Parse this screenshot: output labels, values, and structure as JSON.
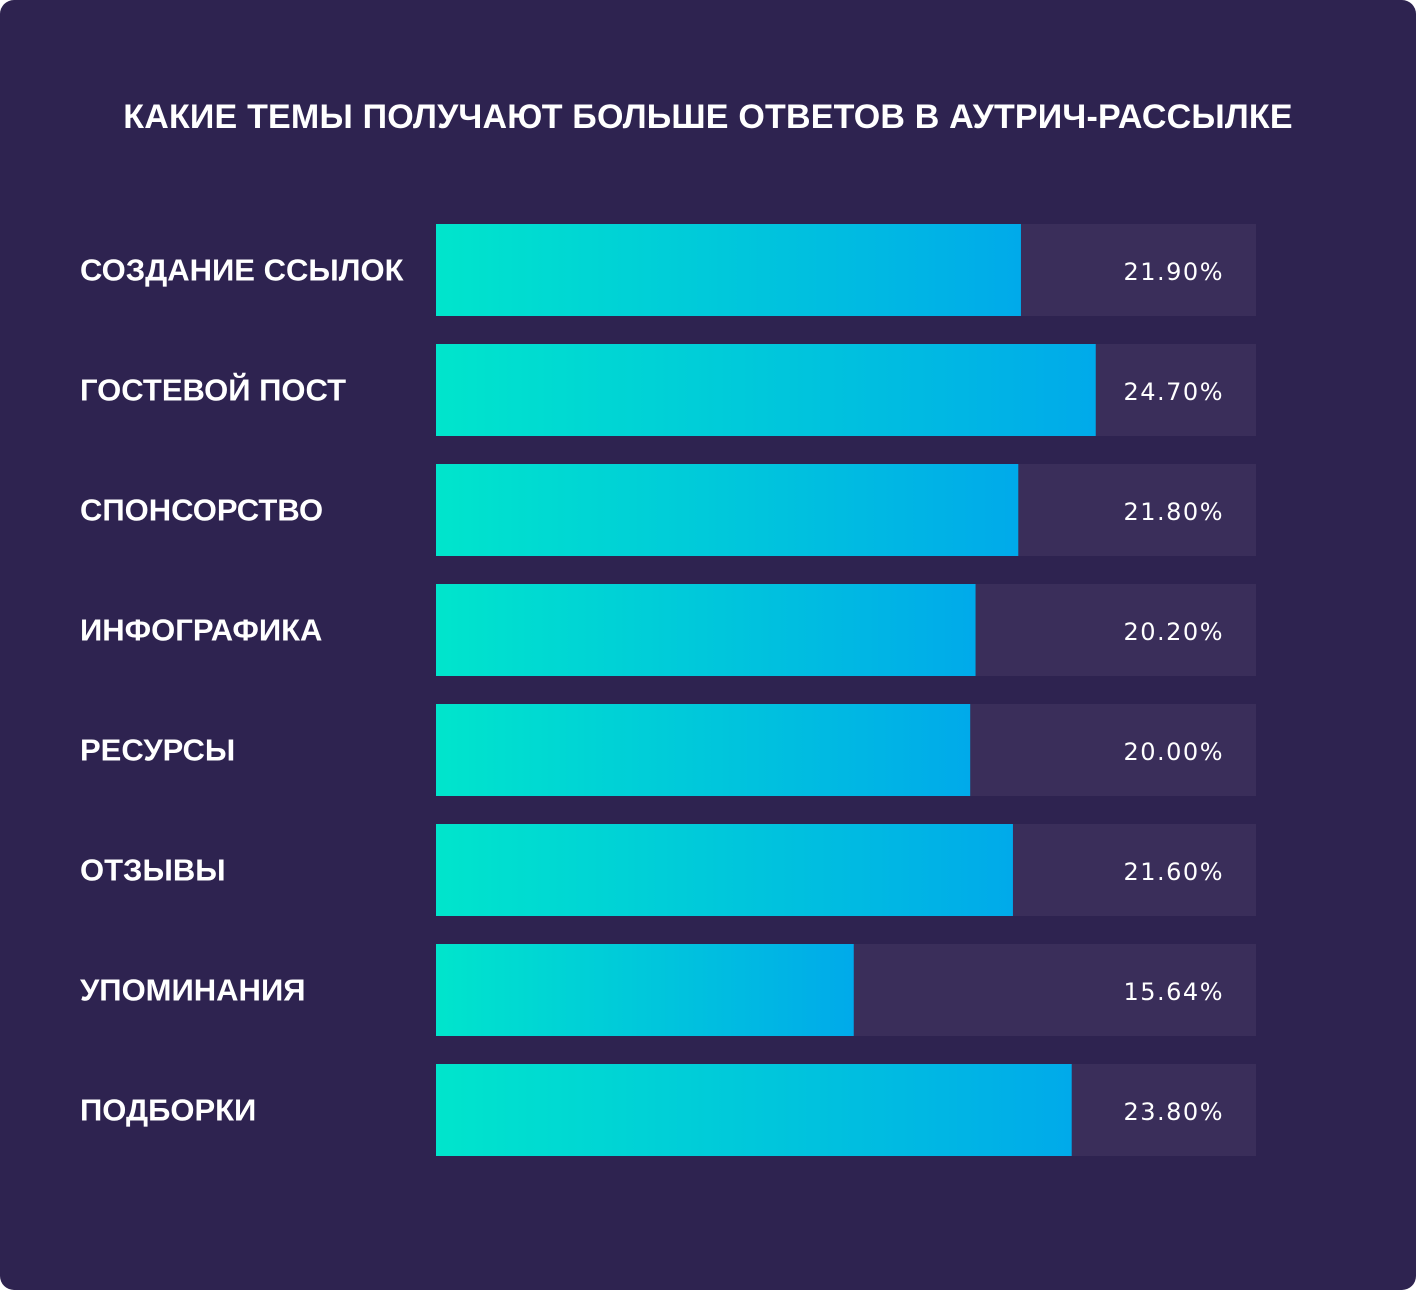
{
  "chart_data": {
    "type": "bar",
    "orientation": "horizontal",
    "title": "КАКИЕ ТЕМЫ ПОЛУЧАЮТ БОЛЬШЕ ОТВЕТОВ В АУТРИЧ-РАССЫЛКЕ",
    "categories": [
      "СОЗДАНИЕ ССЫЛОК",
      "ГОСТЕВОЙ ПОСТ",
      "СПОНСОРСТВО",
      "ИНФОГРАФИКА",
      "РЕСУРСЫ",
      "ОТЗЫВЫ",
      "УПОМИНАНИЯ",
      "ПОДБОРКИ"
    ],
    "values": [
      21.9,
      24.7,
      21.8,
      20.2,
      20.0,
      21.6,
      15.64,
      23.8
    ],
    "value_labels": [
      "21.90%",
      "24.70%",
      "21.80%",
      "20.20%",
      "20.00%",
      "21.60%",
      "15.64%",
      "23.80%"
    ],
    "xlim": [
      0,
      30.7
    ],
    "grid": false,
    "colors": {
      "background": "#2e2350",
      "track": "#3a2e5a",
      "bar_gradient_start": "#00e5cc",
      "bar_gradient_end": "#00aaea",
      "text": "#ffffff"
    }
  }
}
